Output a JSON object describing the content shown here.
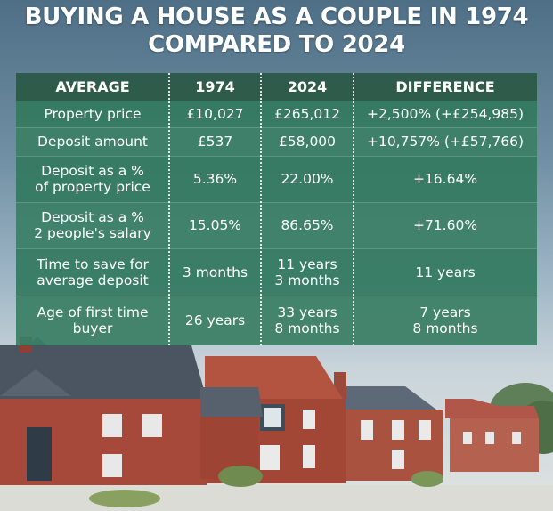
{
  "title": {
    "line1": "BUYING A HOUSE AS A COUPLE IN 1974",
    "line2": "COMPARED TO 2024"
  },
  "table": {
    "headers": [
      "AVERAGE",
      "1974",
      "2024",
      "DIFFERENCE"
    ],
    "rows": [
      {
        "label": [
          "Property price"
        ],
        "y1974": [
          "£10,027"
        ],
        "y2024": [
          "£265,012"
        ],
        "diff": [
          "+2,500% (+£254,985)"
        ]
      },
      {
        "label": [
          "Deposit amount"
        ],
        "y1974": [
          "£537"
        ],
        "y2024": [
          "£58,000"
        ],
        "diff": [
          "+10,757% (+£57,766)"
        ]
      },
      {
        "label": [
          "Deposit as a %",
          "of property price"
        ],
        "y1974": [
          "5.36%"
        ],
        "y2024": [
          "22.00%"
        ],
        "diff": [
          "+16.64%"
        ]
      },
      {
        "label": [
          "Deposit as a %",
          "2 people's salary"
        ],
        "y1974": [
          "15.05%"
        ],
        "y2024": [
          "86.65%"
        ],
        "diff": [
          "+71.60%"
        ]
      },
      {
        "label": [
          "Time to save for",
          "average deposit"
        ],
        "y1974": [
          "3 months"
        ],
        "y2024": [
          "11 years",
          "3 months"
        ],
        "diff": [
          "11 years"
        ]
      },
      {
        "label": [
          "Age of first time",
          "buyer"
        ],
        "y1974": [
          "26 years"
        ],
        "y2024": [
          "33 years",
          "8 months"
        ],
        "diff": [
          "7 years",
          "8 months"
        ]
      }
    ]
  },
  "colors": {
    "table_body": "#347a60",
    "table_header": "#2e5b4a",
    "text": "#ffffff",
    "brick": "#a94a3a",
    "roof": "#4f5a66"
  }
}
